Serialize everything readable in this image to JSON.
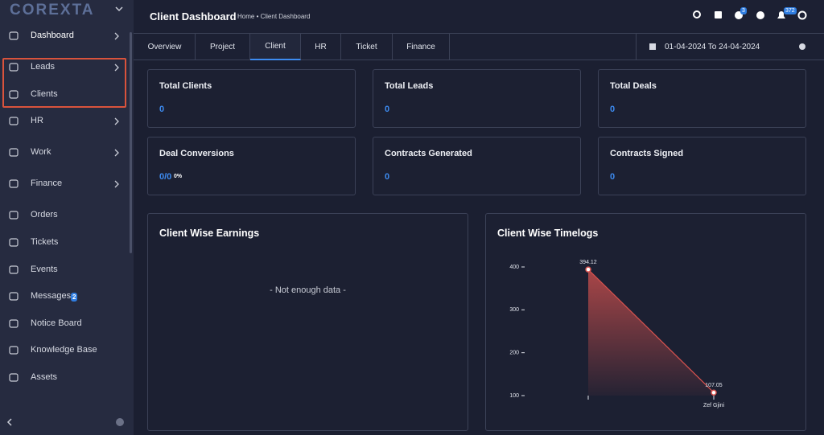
{
  "sidebar": {
    "logo": "COREXTA",
    "items": [
      "Dashboard",
      "Leads",
      "Clients",
      "HR",
      "Work",
      "Finance",
      "Orders",
      "Tickets",
      "Events",
      "Messages",
      "Notice Board",
      "Knowledge Base",
      "Assets"
    ],
    "messages_badge": 2
  },
  "header": {
    "title": "Client Dashboard",
    "breadcrumb": "Home • Client Dashboard",
    "timer_badge": 3,
    "notification_badge": 372
  },
  "tabs": [
    "Overview",
    "Project",
    "Client",
    "HR",
    "Ticket",
    "Finance"
  ],
  "date_range": "01-04-2024 To 24-04-2024",
  "cards": [
    {
      "title": "Total Clients",
      "value": 0
    },
    {
      "title": "Total Leads",
      "value": 0
    },
    {
      "title": "Total Deals",
      "value": 0
    },
    {
      "title": "Deal Conversions",
      "value": "0/0",
      "percent": "0%"
    },
    {
      "title": "Contracts Generated",
      "value": 0
    },
    {
      "title": "Contracts Signed",
      "value": 0
    }
  ],
  "earnings": {
    "title": "Client Wise Earnings",
    "empty": "- Not enough data -"
  },
  "chart_data": {
    "type": "area",
    "title": "Client Wise Timelogs",
    "categories": [
      null,
      "Zef Gjini"
    ],
    "values": [
      394.12,
      107.05
    ],
    "ylim": [
      100,
      400
    ],
    "yticks": [
      100,
      200,
      300,
      400
    ],
    "color": "#d9534f"
  }
}
